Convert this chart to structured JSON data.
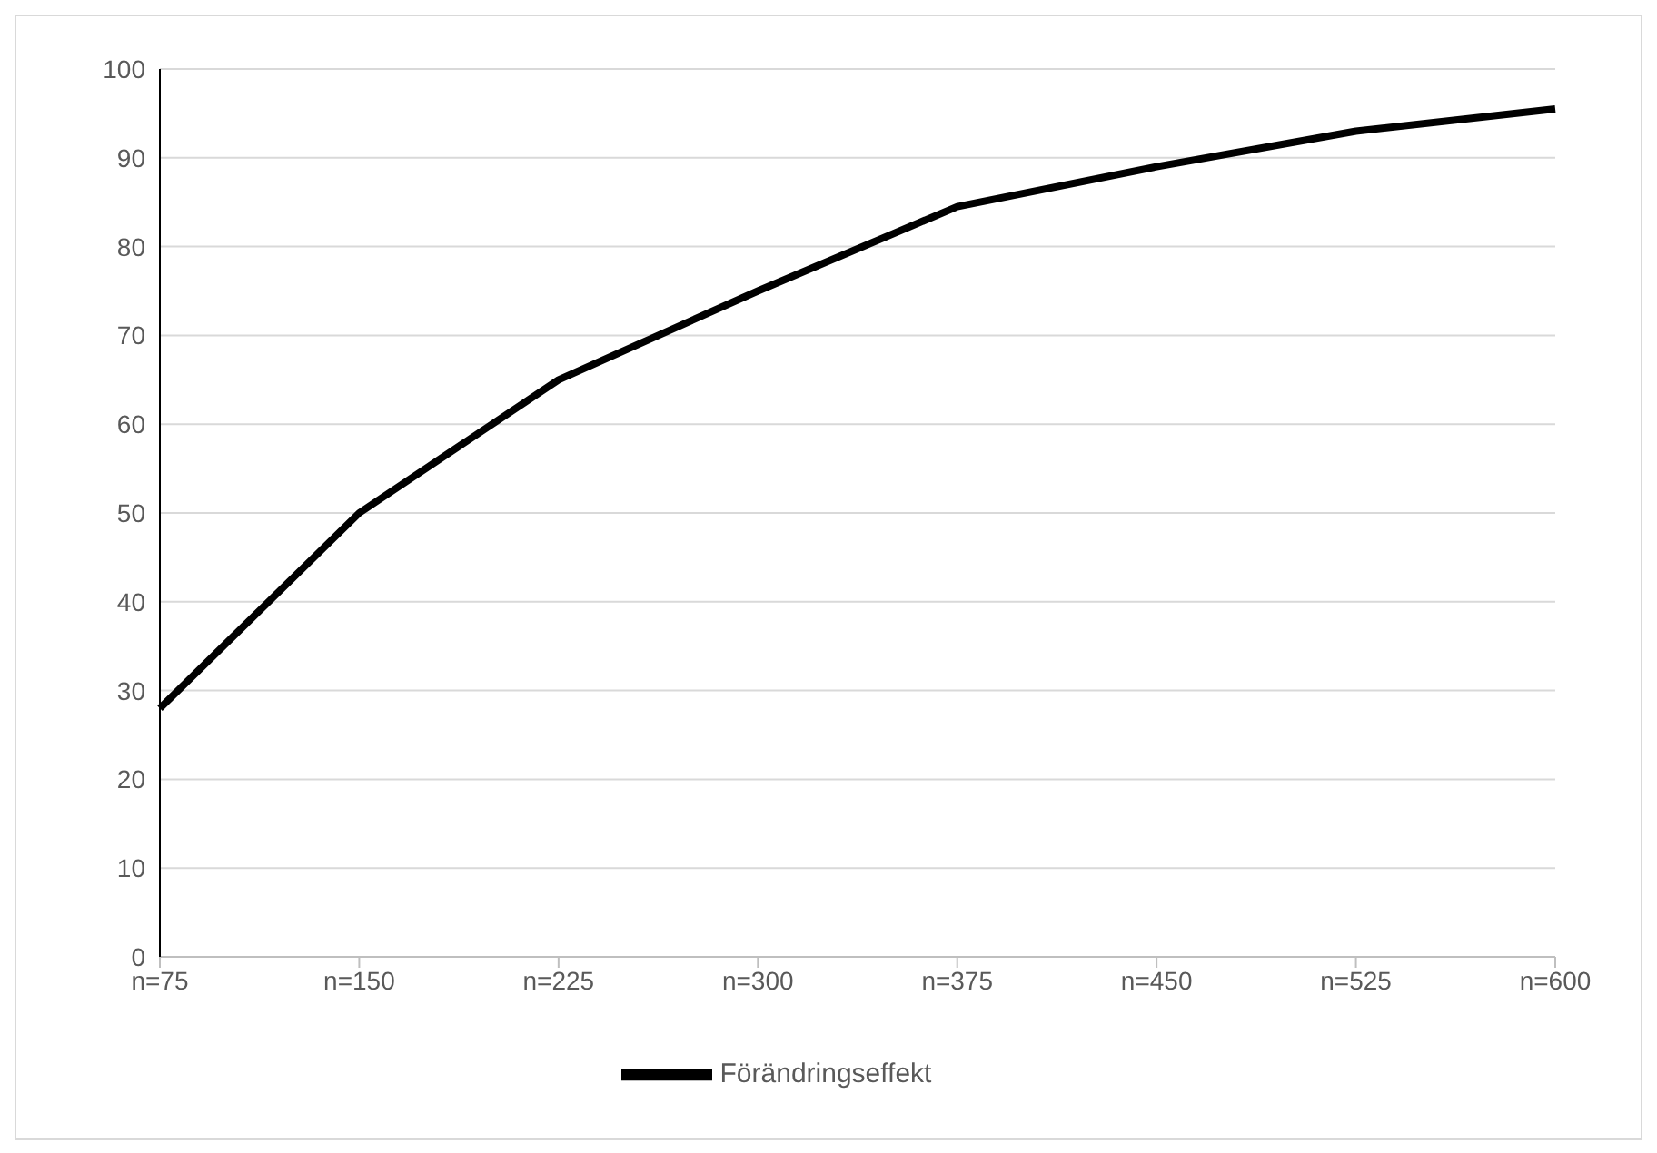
{
  "chart_data": {
    "type": "line",
    "categories": [
      "n=75",
      "n=150",
      "n=225",
      "n=300",
      "n=375",
      "n=450",
      "n=525",
      "n=600"
    ],
    "series": [
      {
        "name": "Förändringseffekt",
        "color": "#000000",
        "values": [
          28,
          50,
          65,
          75,
          84.5,
          89,
          93,
          95.5
        ]
      }
    ],
    "ylim": [
      0,
      100
    ],
    "yticks": [
      0,
      10,
      20,
      30,
      40,
      50,
      60,
      70,
      80,
      90,
      100
    ],
    "grid": "y",
    "legend": "bottom",
    "marker": "none",
    "line_style": "solid"
  }
}
